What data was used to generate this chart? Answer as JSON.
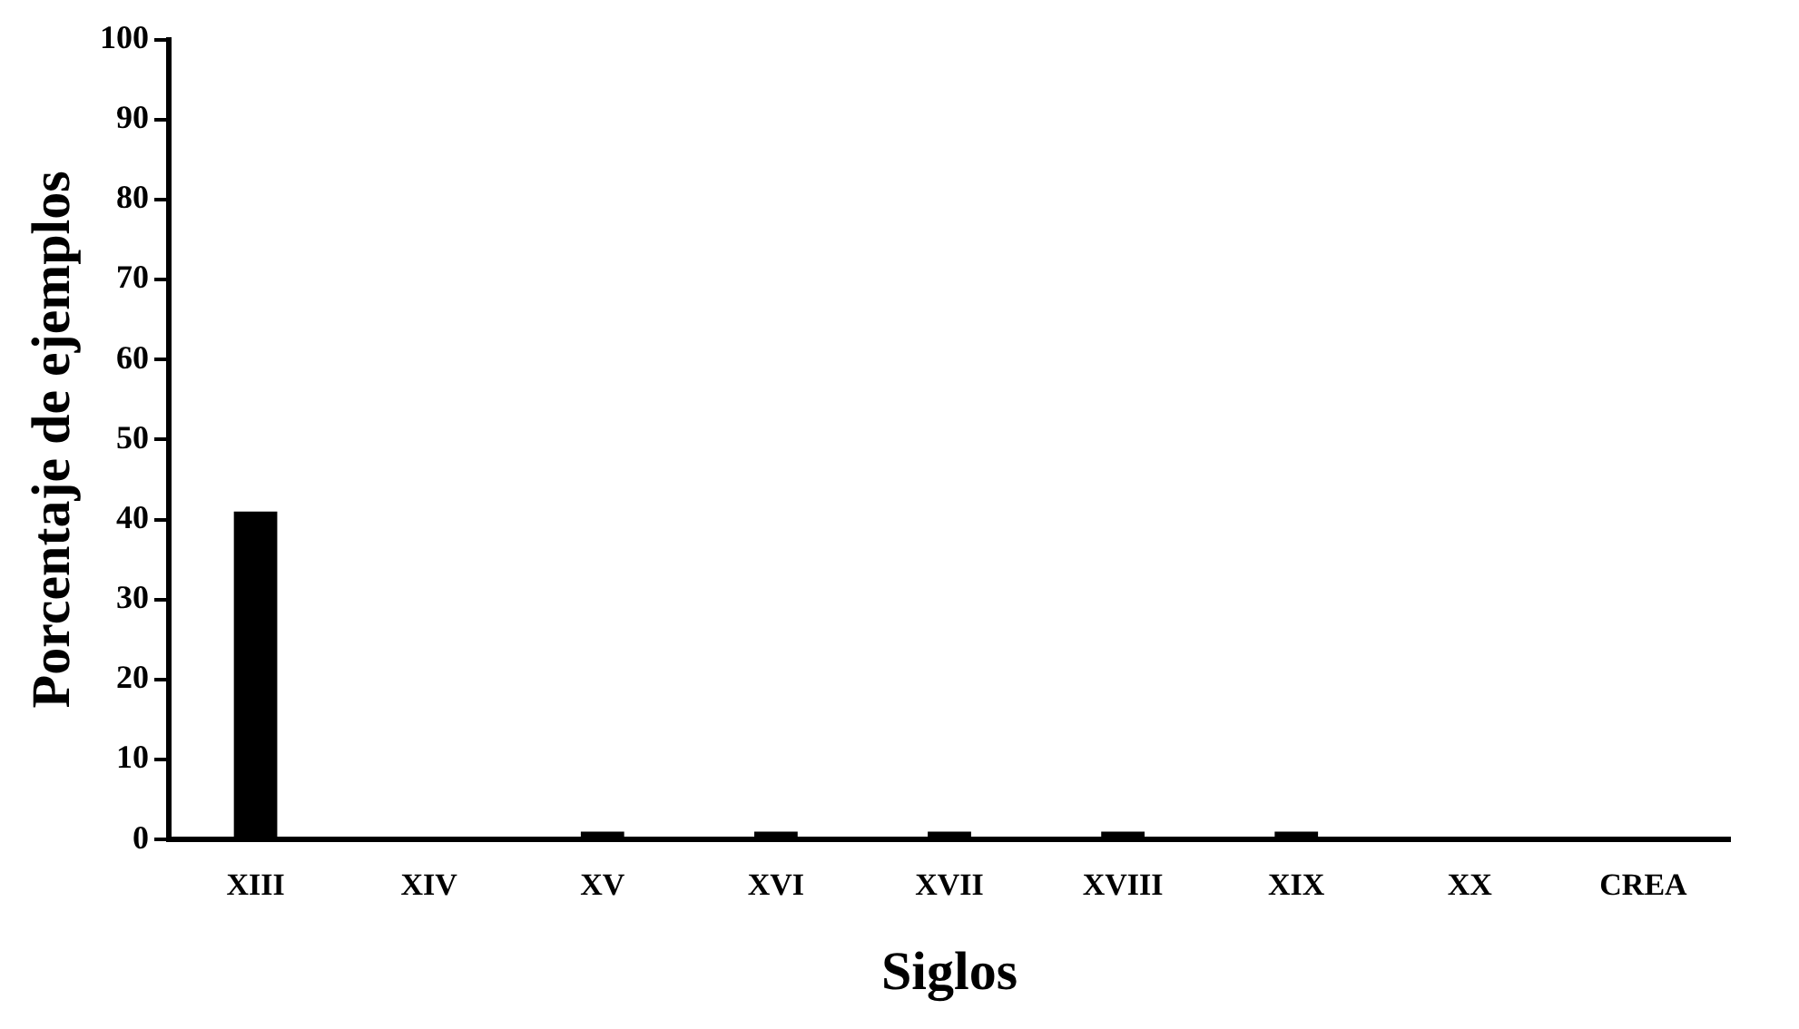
{
  "chart_data": {
    "type": "bar",
    "xlabel": "Siglos",
    "ylabel": "Porcentaje de ejemplos",
    "categories": [
      "XIII",
      "XIV",
      "XV",
      "XVI",
      "XVII",
      "XVIII",
      "XIX",
      "XX",
      "CREA"
    ],
    "values": [
      41,
      0,
      1,
      1,
      1,
      1,
      1,
      0,
      0
    ],
    "color": "#000000",
    "ylim": [
      0,
      100
    ],
    "yticks": [
      0,
      10,
      20,
      30,
      40,
      50,
      60,
      70,
      80,
      90,
      100
    ],
    "grid": false,
    "legend": false
  }
}
